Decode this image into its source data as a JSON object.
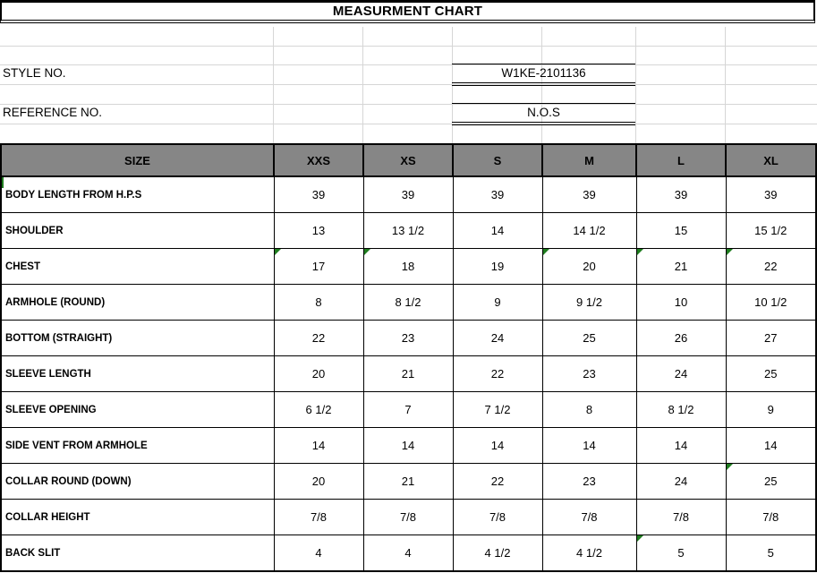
{
  "title": "MEASURMENT CHART",
  "meta": {
    "style_label": "STYLE NO.",
    "style_value": "W1KE-2101136",
    "reference_label": "REFERENCE NO.",
    "reference_value": "N.O.S"
  },
  "table": {
    "size_header": "SIZE",
    "columns": [
      "XXS",
      "XS",
      "S",
      "M",
      "L",
      "XL"
    ],
    "rows": [
      {
        "label": "BODY LENGTH FROM H.P.S",
        "values": [
          "39",
          "39",
          "39",
          "39",
          "39",
          "39"
        ],
        "label_flag": true,
        "flags": []
      },
      {
        "label": "SHOULDER",
        "values": [
          "13",
          "13 1/2",
          "14",
          "14 1/2",
          "15",
          "15 1/2"
        ],
        "flags": []
      },
      {
        "label": "CHEST",
        "values": [
          "17",
          "18",
          "19",
          "20",
          "21",
          "22"
        ],
        "flags": [
          0,
          1,
          3,
          4,
          5
        ]
      },
      {
        "label": "ARMHOLE (ROUND)",
        "values": [
          "8",
          "8 1/2",
          "9",
          "9 1/2",
          "10",
          "10 1/2"
        ],
        "flags": []
      },
      {
        "label": "BOTTOM (STRAIGHT)",
        "values": [
          "22",
          "23",
          "24",
          "25",
          "26",
          "27"
        ],
        "flags": []
      },
      {
        "label": "SLEEVE LENGTH",
        "values": [
          "20",
          "21",
          "22",
          "23",
          "24",
          "25"
        ],
        "flags": []
      },
      {
        "label": "SLEEVE OPENING",
        "values": [
          "6 1/2",
          "7",
          "7 1/2",
          "8",
          "8 1/2",
          "9"
        ],
        "flags": []
      },
      {
        "label": "SIDE VENT FROM ARMHOLE",
        "values": [
          "14",
          "14",
          "14",
          "14",
          "14",
          "14"
        ],
        "flags": []
      },
      {
        "label": "COLLAR ROUND (DOWN)",
        "values": [
          "20",
          "21",
          "22",
          "23",
          "24",
          "25"
        ],
        "flags": [
          5
        ]
      },
      {
        "label": "COLLAR HEIGHT",
        "values": [
          "7/8",
          "7/8",
          "7/8",
          "7/8",
          "7/8",
          "7/8"
        ],
        "flags": []
      },
      {
        "label": "BACK SLIT",
        "values": [
          "4",
          "4",
          "4 1/2",
          "4 1/2",
          "5",
          "5"
        ],
        "flags": [
          4
        ]
      }
    ]
  },
  "colors": {
    "header_bg": "#868686",
    "error_flag_green": "#1f7d1f",
    "gridline": "#d6d6d6"
  }
}
